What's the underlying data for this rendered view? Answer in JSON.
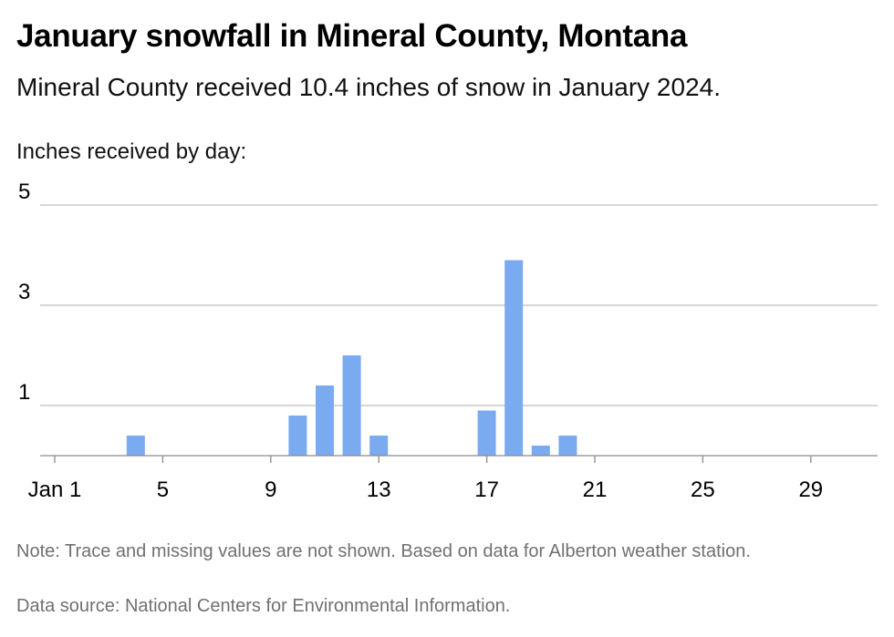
{
  "title": "January snowfall in Mineral County, Montana",
  "subtitle": "Mineral County received 10.4 inches of snow in January 2024.",
  "note": "Note: Trace and missing values are not shown. Based on data for Alberton weather station.",
  "source": "Data source: National Centers for Environmental Information.",
  "colors": {
    "bar": "#7aaaf0",
    "grid": "#bdbdbd",
    "text": "#000000",
    "footer": "#707070"
  },
  "chart_data": {
    "type": "bar",
    "title": "January snowfall in Mineral County, Montana",
    "ylabel": "Inches received by day:",
    "xlabel": "",
    "ylim": [
      0,
      5
    ],
    "y_ticks": [
      1,
      3,
      5
    ],
    "xlim": [
      1,
      31
    ],
    "x_ticks": [
      1,
      5,
      9,
      13,
      17,
      21,
      25,
      29
    ],
    "x_tick_labels": [
      "Jan 1",
      "5",
      "9",
      "13",
      "17",
      "21",
      "25",
      "29"
    ],
    "grid": true,
    "series": [
      {
        "x": [
          4,
          10,
          11,
          12,
          13,
          17,
          18,
          19,
          20
        ],
        "values": [
          0.4,
          0.8,
          1.4,
          2.0,
          0.4,
          0.9,
          3.9,
          0.2,
          0.4
        ]
      }
    ]
  }
}
